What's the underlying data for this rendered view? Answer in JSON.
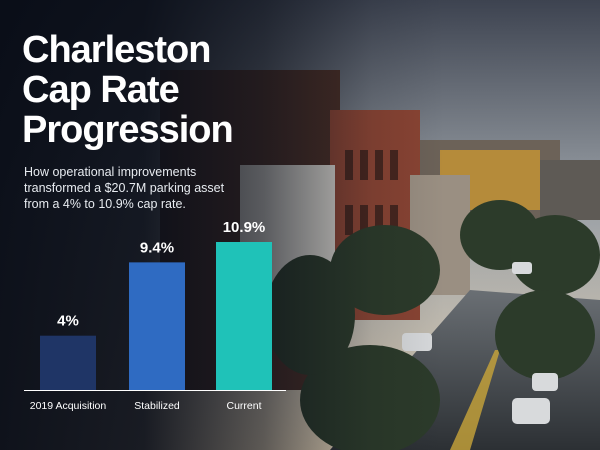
{
  "title_lines": [
    "Charleston",
    "Cap Rate",
    "Progression"
  ],
  "subtitle_lines": [
    "How operational improvements",
    "transformed a $20.7M parking asset",
    "from a 4% to 10.9% cap rate."
  ],
  "colors": {
    "bar_2019": "#1f3566",
    "bar_stabilized": "#2f6bc2",
    "bar_current": "#1fc2b8",
    "baseline": "#ffffff"
  },
  "chart_data": {
    "type": "bar",
    "categories": [
      "2019 Acquisition",
      "Stabilized",
      "Current"
    ],
    "values": [
      4,
      9.4,
      10.9
    ],
    "data_labels": [
      "4%",
      "9.4%",
      "10.9%"
    ],
    "ylim": [
      0,
      10.9
    ],
    "grid": false,
    "legend": "none"
  }
}
